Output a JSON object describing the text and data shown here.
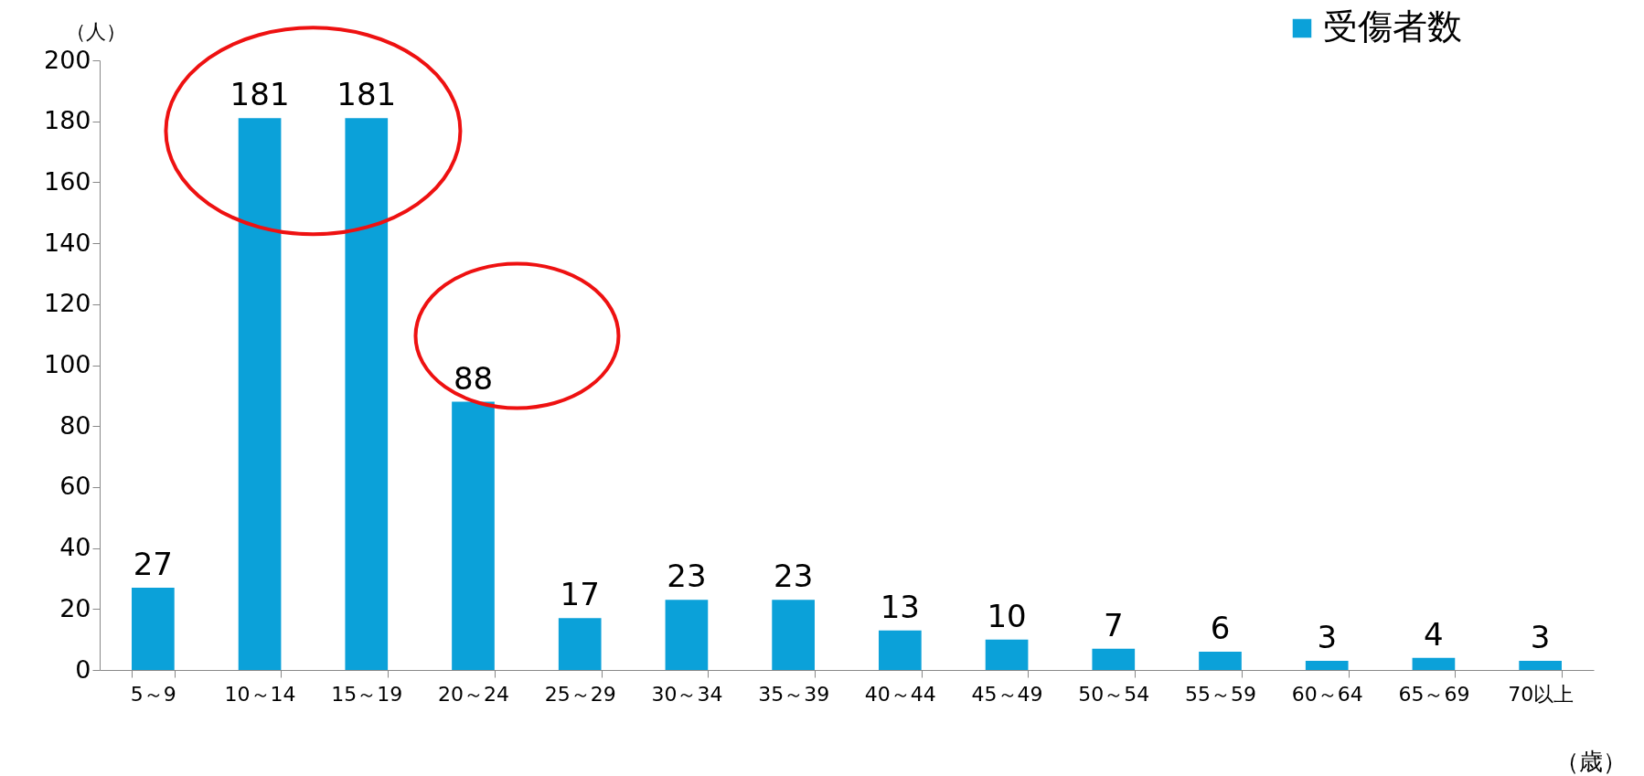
{
  "chart_data": {
    "type": "bar",
    "ylabel": "（人）",
    "xlabel": "（歳）",
    "categories": [
      "5～9",
      "10～14",
      "15～19",
      "20～24",
      "25～29",
      "30～34",
      "35～39",
      "40～44",
      "45～49",
      "50～54",
      "55～59",
      "60～64",
      "65～69",
      "70以上"
    ],
    "series": [
      {
        "name": "受傷者数",
        "color": "#0ba1d9",
        "values": [
          27,
          181,
          181,
          88,
          17,
          23,
          23,
          13,
          10,
          7,
          6,
          3,
          4,
          3
        ]
      }
    ],
    "ylim": [
      0,
      200
    ],
    "yticks": [
      0,
      20,
      40,
      60,
      80,
      100,
      120,
      140,
      160,
      180,
      200
    ],
    "data_labels": true,
    "grid": false,
    "legend": "top right"
  }
}
